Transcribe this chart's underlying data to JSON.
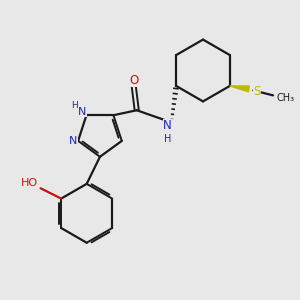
{
  "bg_color": "#e8e8e8",
  "bond_color": "#1a1a1a",
  "n_color": "#2222bb",
  "o_color": "#cc1111",
  "s_color": "#bbbb00",
  "figsize": [
    3.0,
    3.0
  ],
  "dpi": 100,
  "xlim": [
    0,
    10
  ],
  "ylim": [
    0,
    10
  ]
}
